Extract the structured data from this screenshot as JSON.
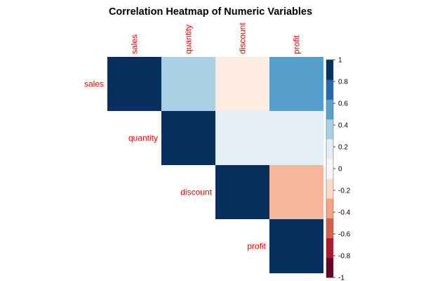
{
  "chart_data": {
    "type": "heatmap",
    "title": "Correlation Heatmap of Numeric Variables",
    "variables": [
      "sales",
      "quantity",
      "discount",
      "profit"
    ],
    "layout": "upper-triangle",
    "matrix": [
      [
        1.0,
        0.3,
        -0.05,
        0.55
      ],
      [
        0.3,
        1.0,
        0.1,
        0.1
      ],
      [
        -0.05,
        0.1,
        1.0,
        -0.25
      ],
      [
        0.55,
        0.1,
        -0.25,
        1.0
      ]
    ],
    "colorbar": {
      "min": -1,
      "max": 1,
      "step": 0.2,
      "tick_labels": [
        "-1",
        "-0.8",
        "-0.6",
        "-0.4",
        "-0.2",
        "0",
        "0.2",
        "0.4",
        "0.6",
        "0.8",
        "1"
      ],
      "colors": [
        "#67001F",
        "#B2182B",
        "#D6604D",
        "#F4A582",
        "#FDDBC7",
        "#F7F7F7",
        "#E3EEF4",
        "#A8D0E4",
        "#5AA0CD",
        "#2268AD",
        "#053061"
      ]
    },
    "label_color": "#E60000",
    "cell_colors": {
      "diagonal": "#08305E",
      "sales_quantity": "#A9D0E4",
      "sales_discount": "#FDEAE0",
      "sales_profit": "#569ECC",
      "quantity_discount": "#E4EFF5",
      "quantity_profit": "#E4EFF5",
      "discount_profit": "#F5B79C"
    }
  }
}
